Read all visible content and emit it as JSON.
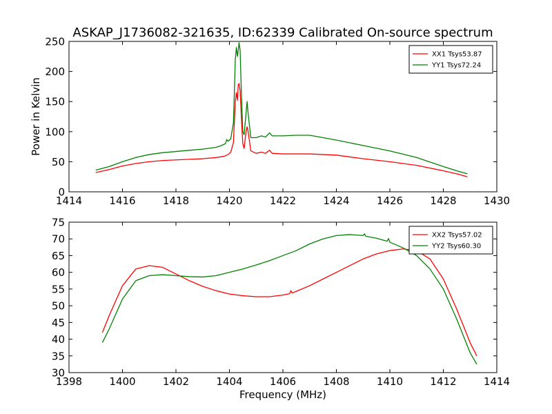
{
  "figure": {
    "title": "ASKAP_J1736082-321635, ID:62339 Calibrated On-source spectrum",
    "xlabel": "Frequency (MHz)"
  },
  "chart_data": [
    {
      "type": "line",
      "ylabel": "Power in Kelvin",
      "xlim": [
        1414,
        1430
      ],
      "ylim": [
        0,
        250
      ],
      "xticks": [
        1414,
        1416,
        1418,
        1420,
        1422,
        1424,
        1426,
        1428,
        1430
      ],
      "yticks": [
        0,
        50,
        100,
        150,
        200,
        250
      ],
      "legend_position": "top-right",
      "grid": false,
      "series": [
        {
          "name": "XX1 Tsys53.87",
          "color": "#ff0000",
          "points": [
            [
              1415.0,
              32
            ],
            [
              1415.5,
              37
            ],
            [
              1416.0,
              43
            ],
            [
              1416.5,
              47
            ],
            [
              1417.0,
              50
            ],
            [
              1417.5,
              52
            ],
            [
              1418.0,
              53
            ],
            [
              1418.5,
              54
            ],
            [
              1419.0,
              55
            ],
            [
              1419.5,
              57
            ],
            [
              1419.8,
              59
            ],
            [
              1419.95,
              62
            ],
            [
              1420.05,
              66
            ],
            [
              1420.15,
              82
            ],
            [
              1420.22,
              150
            ],
            [
              1420.26,
              165
            ],
            [
              1420.3,
              152
            ],
            [
              1420.33,
              178
            ],
            [
              1420.36,
              180
            ],
            [
              1420.4,
              168
            ],
            [
              1420.45,
              120
            ],
            [
              1420.5,
              80
            ],
            [
              1420.55,
              72
            ],
            [
              1420.62,
              100
            ],
            [
              1420.66,
              108
            ],
            [
              1420.7,
              100
            ],
            [
              1420.8,
              68
            ],
            [
              1421.0,
              64
            ],
            [
              1421.2,
              66
            ],
            [
              1421.35,
              64
            ],
            [
              1421.5,
              69
            ],
            [
              1421.6,
              64
            ],
            [
              1422.0,
              63
            ],
            [
              1423.0,
              63
            ],
            [
              1424.0,
              61
            ],
            [
              1425.0,
              55
            ],
            [
              1426.0,
              50
            ],
            [
              1427.0,
              44
            ],
            [
              1428.0,
              35
            ],
            [
              1428.5,
              30
            ],
            [
              1428.9,
              25
            ]
          ]
        },
        {
          "name": "YY1 Tsys72.24",
          "color": "#008000",
          "points": [
            [
              1415.0,
              36
            ],
            [
              1415.5,
              42
            ],
            [
              1416.0,
              50
            ],
            [
              1416.5,
              57
            ],
            [
              1417.0,
              62
            ],
            [
              1417.5,
              65
            ],
            [
              1418.0,
              67
            ],
            [
              1418.5,
              69
            ],
            [
              1419.0,
              71
            ],
            [
              1419.5,
              74
            ],
            [
              1419.7,
              77
            ],
            [
              1419.85,
              80
            ],
            [
              1419.9,
              87
            ],
            [
              1419.95,
              84
            ],
            [
              1420.05,
              88
            ],
            [
              1420.15,
              115
            ],
            [
              1420.22,
              220
            ],
            [
              1420.26,
              240
            ],
            [
              1420.3,
              225
            ],
            [
              1420.33,
              235
            ],
            [
              1420.36,
              248
            ],
            [
              1420.4,
              235
            ],
            [
              1420.45,
              160
            ],
            [
              1420.5,
              100
            ],
            [
              1420.55,
              95
            ],
            [
              1420.62,
              130
            ],
            [
              1420.66,
              150
            ],
            [
              1420.7,
              130
            ],
            [
              1420.8,
              90
            ],
            [
              1421.0,
              90
            ],
            [
              1421.2,
              93
            ],
            [
              1421.35,
              91
            ],
            [
              1421.5,
              98
            ],
            [
              1421.6,
              93
            ],
            [
              1422.0,
              93
            ],
            [
              1422.5,
              94
            ],
            [
              1423.0,
              94
            ],
            [
              1424.0,
              86
            ],
            [
              1425.0,
              77
            ],
            [
              1426.0,
              68
            ],
            [
              1427.0,
              57
            ],
            [
              1428.0,
              42
            ],
            [
              1428.5,
              35
            ],
            [
              1428.9,
              30
            ]
          ]
        }
      ]
    },
    {
      "type": "line",
      "ylabel": "",
      "xlim": [
        1398,
        1414
      ],
      "ylim": [
        30,
        75
      ],
      "xticks": [
        1398,
        1400,
        1402,
        1404,
        1406,
        1408,
        1410,
        1412,
        1414
      ],
      "yticks": [
        30,
        35,
        40,
        45,
        50,
        55,
        60,
        65,
        70,
        75
      ],
      "legend_position": "top-right",
      "grid": false,
      "series": [
        {
          "name": "XX2 Tsys57.02",
          "color": "#ff0000",
          "points": [
            [
              1399.25,
              42
            ],
            [
              1399.5,
              47
            ],
            [
              1400.0,
              56
            ],
            [
              1400.5,
              61
            ],
            [
              1401.0,
              62
            ],
            [
              1401.5,
              61.5
            ],
            [
              1402.0,
              59.5
            ],
            [
              1402.5,
              57.5
            ],
            [
              1403.0,
              55.8
            ],
            [
              1403.5,
              54.5
            ],
            [
              1404.0,
              53.5
            ],
            [
              1404.5,
              53
            ],
            [
              1405.0,
              52.7
            ],
            [
              1405.5,
              52.7
            ],
            [
              1406.0,
              53.2
            ],
            [
              1406.25,
              53.6
            ],
            [
              1406.3,
              54.5
            ],
            [
              1406.35,
              53.8
            ],
            [
              1406.5,
              54.3
            ],
            [
              1407.0,
              56
            ],
            [
              1407.5,
              58
            ],
            [
              1408.0,
              60
            ],
            [
              1408.5,
              62
            ],
            [
              1409.0,
              64
            ],
            [
              1409.5,
              65.5
            ],
            [
              1410.0,
              66.5
            ],
            [
              1410.5,
              67
            ],
            [
              1411.0,
              66.5
            ],
            [
              1411.5,
              64
            ],
            [
              1412.0,
              58
            ],
            [
              1412.5,
              49
            ],
            [
              1413.0,
              39
            ],
            [
              1413.25,
              35
            ]
          ]
        },
        {
          "name": "YY2 Tsys60.30",
          "color": "#008000",
          "points": [
            [
              1399.25,
              39
            ],
            [
              1399.5,
              43
            ],
            [
              1400.0,
              52
            ],
            [
              1400.5,
              57.5
            ],
            [
              1401.0,
              59
            ],
            [
              1401.5,
              59.3
            ],
            [
              1402.0,
              59
            ],
            [
              1402.5,
              58.7
            ],
            [
              1403.0,
              58.6
            ],
            [
              1403.5,
              59
            ],
            [
              1404.0,
              60
            ],
            [
              1404.5,
              61
            ],
            [
              1405.0,
              62.2
            ],
            [
              1405.5,
              63.5
            ],
            [
              1406.0,
              65
            ],
            [
              1406.5,
              66.5
            ],
            [
              1407.0,
              68.5
            ],
            [
              1407.5,
              70
            ],
            [
              1408.0,
              71
            ],
            [
              1408.5,
              71.3
            ],
            [
              1409.0,
              71
            ],
            [
              1409.05,
              71.5
            ],
            [
              1409.1,
              70.8
            ],
            [
              1409.5,
              70.2
            ],
            [
              1409.9,
              69.3
            ],
            [
              1409.95,
              70.1
            ],
            [
              1410.0,
              69
            ],
            [
              1410.5,
              67.3
            ],
            [
              1411.0,
              65
            ],
            [
              1411.5,
              61
            ],
            [
              1412.0,
              55
            ],
            [
              1412.5,
              46
            ],
            [
              1413.0,
              36
            ],
            [
              1413.25,
              32.5
            ]
          ]
        }
      ]
    }
  ]
}
